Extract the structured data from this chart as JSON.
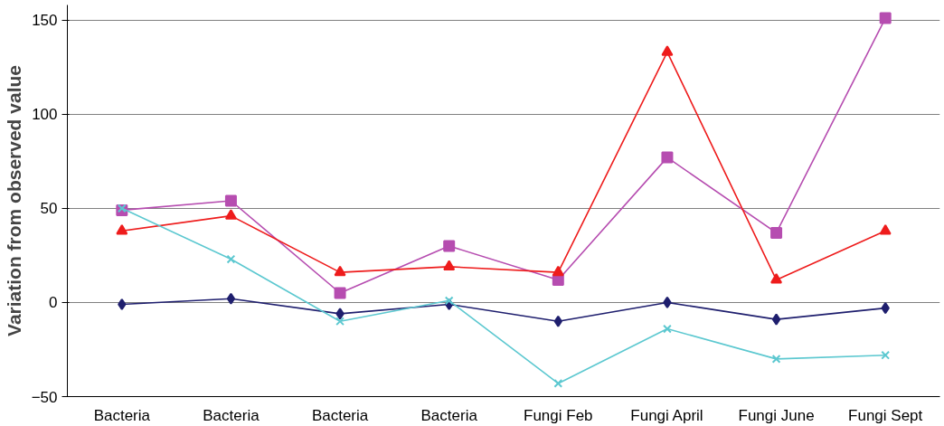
{
  "chart_data": {
    "type": "line",
    "ylabel": "Variation from observed value",
    "categories": [
      "Bacteria",
      "Bacteria",
      "Bacteria",
      "Bacteria",
      "Fungi Feb",
      "Fungi April",
      "Fungi June",
      "Fungi Sept"
    ],
    "series": [
      {
        "color": "#1f1f6e",
        "marker": "diamond",
        "values": [
          -1,
          2,
          -6,
          -1,
          -10,
          0,
          -9,
          -3
        ]
      },
      {
        "color": "#b64db0",
        "marker": "square",
        "values": [
          49,
          54,
          5,
          30,
          12,
          77,
          37,
          151
        ]
      },
      {
        "color": "#ee1c1c",
        "marker": "triangle",
        "values": [
          38,
          46,
          16,
          19,
          16,
          133,
          12,
          38
        ]
      },
      {
        "color": "#5cc8d0",
        "marker": "cross",
        "values": [
          50,
          23,
          -10,
          1,
          -43,
          -14,
          -30,
          -28
        ]
      }
    ],
    "ylim": [
      -50,
      158
    ],
    "yticks": [
      -50,
      0,
      50,
      100,
      150
    ],
    "grid": "y"
  }
}
